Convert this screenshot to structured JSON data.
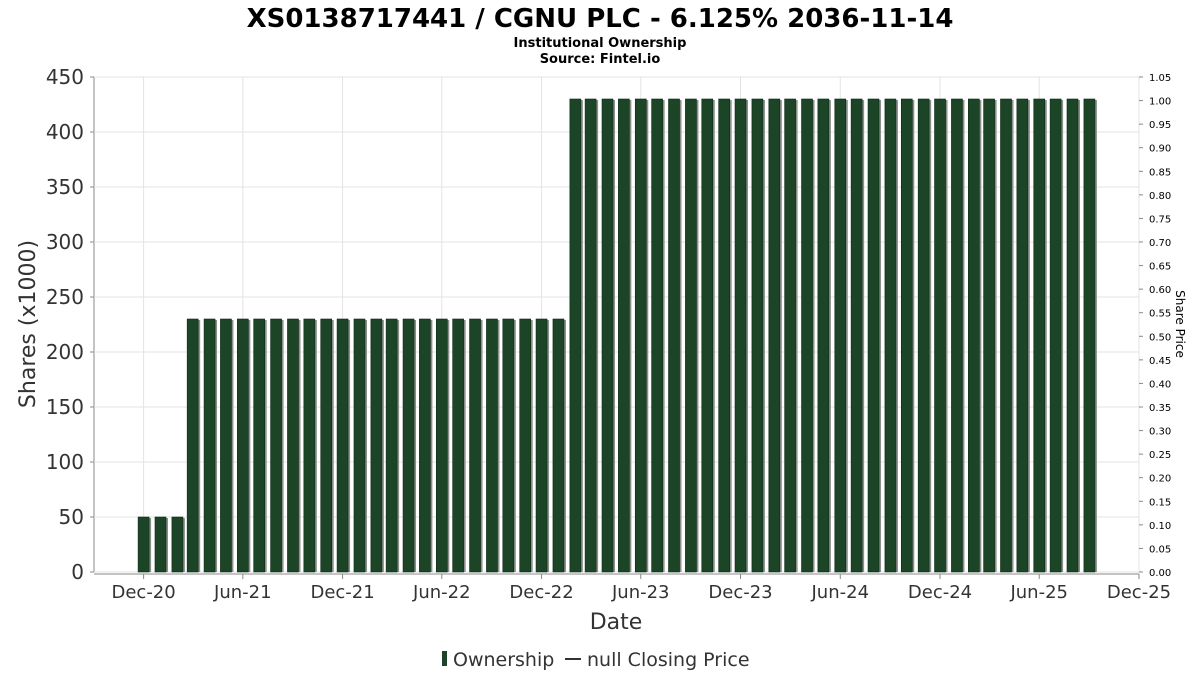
{
  "chart_data": {
    "type": "bar",
    "title": "XS0138717441 / CGNU PLC - 6.125% 2036-11-14",
    "subtitle_lines": [
      "Institutional Ownership",
      "Source: Fintel.io"
    ],
    "xlabel": "Date",
    "ylabel": "Shares (x1000)",
    "y2label": "Share Price",
    "x_range": [
      "2020-09-01",
      "2025-12-01"
    ],
    "ylim": [
      0,
      450
    ],
    "y2lim": [
      0,
      1.05
    ],
    "yticks": [
      "0",
      "50",
      "100",
      "150",
      "200",
      "250",
      "300",
      "350",
      "400",
      "450"
    ],
    "y2ticks": [
      "0.00",
      "0.05",
      "0.10",
      "0.15",
      "0.20",
      "0.25",
      "0.30",
      "0.35",
      "0.40",
      "0.45",
      "0.50",
      "0.55",
      "0.60",
      "0.65",
      "0.70",
      "0.75",
      "0.80",
      "0.85",
      "0.90",
      "0.95",
      "1.00",
      "1.05"
    ],
    "xticks": [
      {
        "date": "2020-12-01",
        "label": "Dec-20"
      },
      {
        "date": "2021-06-01",
        "label": "Jun-21"
      },
      {
        "date": "2021-12-01",
        "label": "Dec-21"
      },
      {
        "date": "2022-06-01",
        "label": "Jun-22"
      },
      {
        "date": "2022-12-01",
        "label": "Dec-22"
      },
      {
        "date": "2023-06-01",
        "label": "Jun-23"
      },
      {
        "date": "2023-12-01",
        "label": "Dec-23"
      },
      {
        "date": "2024-06-01",
        "label": "Jun-24"
      },
      {
        "date": "2024-12-01",
        "label": "Dec-24"
      },
      {
        "date": "2025-06-01",
        "label": "Jun-25"
      },
      {
        "date": "2025-12-01",
        "label": "Dec-25"
      }
    ],
    "grid": true,
    "legend_position": "bottom-center",
    "series": [
      {
        "name": "Ownership",
        "color": "#1b4526",
        "x": [
          "2020-12-01",
          "2021-01-01",
          "2021-02-01",
          "2021-03-01",
          "2021-04-01",
          "2021-05-01",
          "2021-06-01",
          "2021-07-01",
          "2021-08-01",
          "2021-09-01",
          "2021-10-01",
          "2021-11-01",
          "2021-12-01",
          "2022-01-01",
          "2022-02-01",
          "2022-03-01",
          "2022-04-01",
          "2022-05-01",
          "2022-06-01",
          "2022-07-01",
          "2022-08-01",
          "2022-09-01",
          "2022-10-01",
          "2022-11-01",
          "2022-12-01",
          "2023-01-01",
          "2023-02-01",
          "2023-03-01",
          "2023-04-01",
          "2023-05-01",
          "2023-06-01",
          "2023-07-01",
          "2023-08-01",
          "2023-09-01",
          "2023-10-01",
          "2023-11-01",
          "2023-12-01",
          "2024-01-01",
          "2024-02-01",
          "2024-03-01",
          "2024-04-01",
          "2024-05-01",
          "2024-06-01",
          "2024-07-01",
          "2024-08-01",
          "2024-09-01",
          "2024-10-01",
          "2024-11-01",
          "2024-12-01",
          "2025-01-01",
          "2025-02-01",
          "2025-03-01",
          "2025-04-01",
          "2025-05-01",
          "2025-06-01",
          "2025-07-01",
          "2025-08-01",
          "2025-09-01"
        ],
        "values": [
          50,
          50,
          50,
          230,
          230,
          230,
          230,
          230,
          230,
          230,
          230,
          230,
          230,
          230,
          230,
          230,
          230,
          230,
          230,
          230,
          230,
          230,
          230,
          230,
          230,
          230,
          430,
          430,
          430,
          430,
          430,
          430,
          430,
          430,
          430,
          430,
          430,
          430,
          430,
          430,
          430,
          430,
          430,
          430,
          430,
          430,
          430,
          430,
          430,
          430,
          430,
          430,
          430,
          430,
          430,
          430,
          430,
          430
        ]
      },
      {
        "name": "null Closing Price",
        "color": "#333333",
        "values": []
      }
    ]
  }
}
